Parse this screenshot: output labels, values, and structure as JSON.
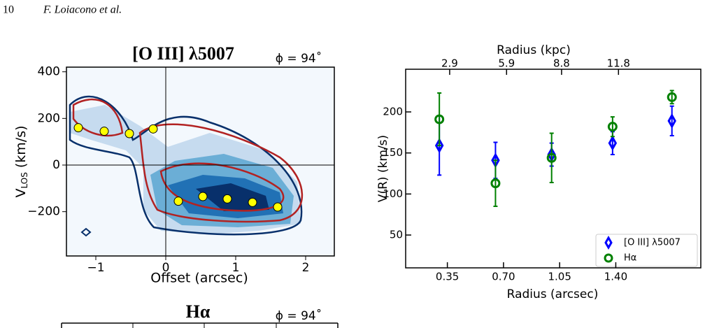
{
  "header": {
    "page_number": "10",
    "authors": "F. Loiacono et al."
  },
  "chart_data": [
    {
      "type": "scatter",
      "title": "[O III] λ5007",
      "annotation": "ϕ = 94˚",
      "x_label": "Offset (arcsec)",
      "y_label": {
        "main": "V",
        "sub": "LOS",
        "unit": " (km/s)"
      },
      "xlim": [
        -1.42,
        2.41
      ],
      "ylim": [
        -390,
        420
      ],
      "xticks": [
        {
          "value": -1,
          "label": "−1"
        },
        0,
        1,
        2
      ],
      "yticks": [
        {
          "value": -200,
          "label": "−200"
        },
        0,
        200,
        400
      ],
      "x": [
        -1.25,
        -0.88,
        -0.52,
        -0.18,
        0.18,
        0.53,
        0.88,
        1.24,
        1.6
      ],
      "values": [
        160,
        145,
        135,
        155,
        -155,
        -135,
        -145,
        -160,
        -180
      ],
      "color": "#ffff00"
    },
    {
      "type": "errorbar",
      "x_label": "Radius (arcsec)",
      "x2_label": "Radius (kpc)",
      "y_label": "V(R) (km/s)",
      "xlim": [
        0.09,
        1.93
      ],
      "ylim": [
        10,
        252
      ],
      "xticks": [
        {
          "value": 0.35,
          "label": "0.35"
        },
        {
          "value": 0.7,
          "label": "0.70"
        },
        1.05,
        {
          "value": 1.4,
          "label": "1.40"
        }
      ],
      "x2lim": [
        0.58,
        16.14
      ],
      "x2ticks": [
        2.9,
        5.9,
        8.8,
        11.8
      ],
      "yticks": [
        50,
        100,
        150,
        200
      ],
      "x": [
        0.3,
        0.65,
        1.0,
        1.38,
        1.75
      ],
      "series": [
        {
          "name": "[O III] λ5007",
          "color": "#0000ff",
          "marker": "diamond",
          "values": [
            159,
            141,
            148,
            162,
            189
          ],
          "errors": [
            36,
            22,
            14,
            14,
            18
          ]
        },
        {
          "name": "Hα",
          "color": "#008000",
          "marker": "circle",
          "values": [
            191,
            113,
            144,
            182,
            218
          ],
          "errors": [
            32,
            28,
            30,
            12,
            8
          ]
        }
      ],
      "legend": "lower right"
    },
    {
      "type": "partial",
      "title": "Hα",
      "annotation": "ϕ = 94˚"
    }
  ]
}
